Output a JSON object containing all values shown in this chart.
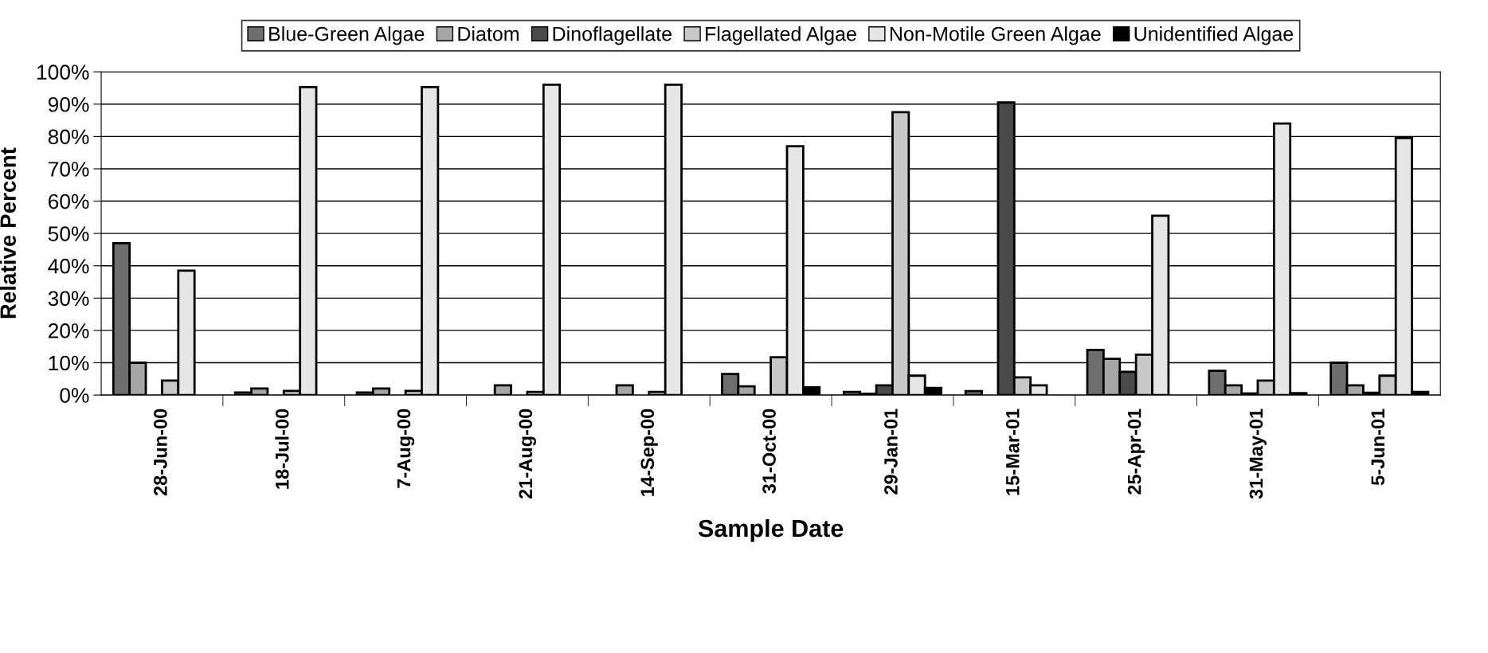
{
  "chart_data": {
    "type": "bar",
    "xlabel": "Sample Date",
    "ylabel": "Relative Percent",
    "categories": [
      "28-Jun-00",
      "18-Jul-00",
      "7-Aug-00",
      "21-Aug-00",
      "14-Sep-00",
      "31-Oct-00",
      "29-Jan-01",
      "15-Mar-01",
      "25-Apr-01",
      "31-May-01",
      "5-Jun-01"
    ],
    "series": [
      {
        "name": "Blue-Green Algae",
        "color": "#6e6e6e",
        "values": [
          47,
          0.8,
          0.8,
          null,
          null,
          6.5,
          1,
          1.2,
          14,
          7.5,
          10
        ]
      },
      {
        "name": "Diatom",
        "color": "#a6a6a6",
        "values": [
          10,
          2,
          2,
          3,
          3,
          2.7,
          0.4,
          null,
          11.2,
          3,
          3
        ]
      },
      {
        "name": "Dinoflagellate",
        "color": "#4a4a4a",
        "values": [
          null,
          null,
          null,
          null,
          null,
          null,
          3,
          90.5,
          7.2,
          0.5,
          0.7
        ]
      },
      {
        "name": "Flagellated Algae",
        "color": "#c8c8c8",
        "values": [
          4.5,
          1.3,
          1.3,
          1,
          1,
          11.7,
          87.5,
          5.5,
          12.5,
          4.5,
          6
        ]
      },
      {
        "name": "Non-Motile Green Algae",
        "color": "#e6e6e6",
        "values": [
          38.5,
          95.3,
          95.3,
          96,
          96,
          77,
          6,
          3,
          55.5,
          84,
          79.5
        ]
      },
      {
        "name": "Unidentified Algae",
        "color": "#000000",
        "values": [
          null,
          null,
          null,
          null,
          null,
          2.4,
          2.2,
          null,
          null,
          0.6,
          1
        ]
      }
    ],
    "ylim": [
      0,
      100
    ],
    "yticks": [
      {
        "value": 0,
        "label": "0%"
      },
      {
        "value": 10,
        "label": "10%"
      },
      {
        "value": 20,
        "label": "20%"
      },
      {
        "value": 30,
        "label": "30%"
      },
      {
        "value": 40,
        "label": "40%"
      },
      {
        "value": 50,
        "label": "50%"
      },
      {
        "value": 60,
        "label": "60%"
      },
      {
        "value": 70,
        "label": "70%"
      },
      {
        "value": 80,
        "label": "80%"
      },
      {
        "value": 90,
        "label": "90%"
      },
      {
        "value": 100,
        "label": "100%"
      }
    ],
    "grid": "y",
    "legend": "top"
  }
}
